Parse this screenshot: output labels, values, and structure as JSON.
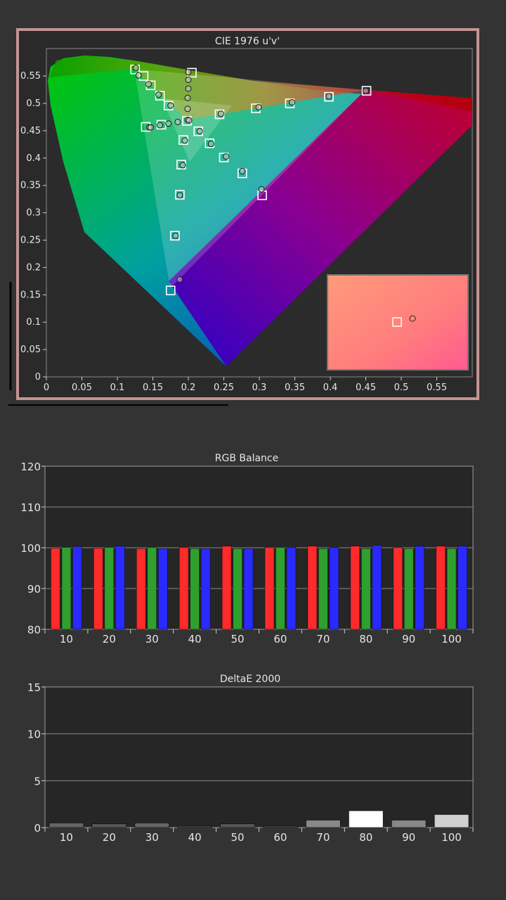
{
  "colors": {
    "background": "#333333",
    "plot_bg": "#2a2a2a",
    "frame_border": "#c39493",
    "grid": "#8a8a8a",
    "red": "#ff2a2a",
    "green": "#2fa02f",
    "blue": "#2a2aff"
  },
  "chart_data": [
    {
      "type": "scatter",
      "title": "CIE 1976 u'v'",
      "xlim": [
        0,
        0.6
      ],
      "ylim": [
        0,
        0.6
      ],
      "x_ticks": [
        "0",
        "0.05",
        "0.1",
        "0.15",
        "0.2",
        "0.25",
        "0.3",
        "0.35",
        "0.4",
        "0.45",
        "0.5",
        "0.55"
      ],
      "y_ticks": [
        "0",
        "0.05",
        "0.1",
        "0.15",
        "0.2",
        "0.25",
        "0.3",
        "0.35",
        "0.4",
        "0.45",
        "0.5",
        "0.55"
      ],
      "gamut": {
        "red": [
          0.451,
          0.523
        ],
        "green": [
          0.125,
          0.562
        ],
        "blue": [
          0.175,
          0.158
        ],
        "white": [
          0.198,
          0.468
        ]
      },
      "targets": [
        [
          0.125,
          0.562
        ],
        [
          0.137,
          0.55
        ],
        [
          0.147,
          0.533
        ],
        [
          0.16,
          0.514
        ],
        [
          0.172,
          0.496
        ],
        [
          0.205,
          0.556
        ],
        [
          0.14,
          0.457
        ],
        [
          0.162,
          0.461
        ],
        [
          0.198,
          0.468
        ],
        [
          0.244,
          0.48
        ],
        [
          0.295,
          0.491
        ],
        [
          0.343,
          0.5
        ],
        [
          0.398,
          0.512
        ],
        [
          0.451,
          0.523
        ],
        [
          0.214,
          0.449
        ],
        [
          0.23,
          0.427
        ],
        [
          0.25,
          0.401
        ],
        [
          0.276,
          0.372
        ],
        [
          0.304,
          0.332
        ],
        [
          0.193,
          0.433
        ],
        [
          0.19,
          0.388
        ],
        [
          0.188,
          0.333
        ],
        [
          0.181,
          0.258
        ],
        [
          0.175,
          0.158
        ]
      ],
      "measured": [
        [
          0.126,
          0.565
        ],
        [
          0.13,
          0.551
        ],
        [
          0.144,
          0.535
        ],
        [
          0.158,
          0.516
        ],
        [
          0.175,
          0.496
        ],
        [
          0.2,
          0.557
        ],
        [
          0.2,
          0.543
        ],
        [
          0.2,
          0.527
        ],
        [
          0.199,
          0.51
        ],
        [
          0.199,
          0.49
        ],
        [
          0.199,
          0.47
        ],
        [
          0.145,
          0.456
        ],
        [
          0.147,
          0.456
        ],
        [
          0.16,
          0.46
        ],
        [
          0.172,
          0.463
        ],
        [
          0.185,
          0.466
        ],
        [
          0.201,
          0.469
        ],
        [
          0.246,
          0.481
        ],
        [
          0.299,
          0.493
        ],
        [
          0.346,
          0.502
        ],
        [
          0.398,
          0.513
        ],
        [
          0.45,
          0.523
        ],
        [
          0.216,
          0.449
        ],
        [
          0.232,
          0.426
        ],
        [
          0.253,
          0.403
        ],
        [
          0.276,
          0.376
        ],
        [
          0.303,
          0.343
        ],
        [
          0.195,
          0.432
        ],
        [
          0.192,
          0.387
        ],
        [
          0.188,
          0.332
        ],
        [
          0.182,
          0.258
        ],
        [
          0.188,
          0.178
        ]
      ]
    },
    {
      "type": "bar",
      "title": "RGB Balance",
      "categories": [
        "10",
        "20",
        "30",
        "40",
        "50",
        "60",
        "70",
        "80",
        "90",
        "100"
      ],
      "ylim": [
        80,
        120
      ],
      "y_ticks": [
        "80",
        "90",
        "100",
        "110",
        "120"
      ],
      "series": [
        {
          "color": "#ff2a2a",
          "values": [
            99.9,
            99.9,
            99.8,
            100.1,
            100.4,
            100.1,
            100.4,
            100.4,
            100.1,
            100.4
          ]
        },
        {
          "color": "#2fa02f",
          "values": [
            100.1,
            100.1,
            100.1,
            99.8,
            99.8,
            100.1,
            99.8,
            99.8,
            99.8,
            99.8
          ]
        },
        {
          "color": "#2a2aff",
          "values": [
            100.3,
            100.4,
            99.8,
            99.8,
            99.8,
            100.1,
            100.1,
            100.6,
            100.4,
            100.4
          ]
        }
      ]
    },
    {
      "type": "bar",
      "title": "DeltaE 2000",
      "categories": [
        "10",
        "20",
        "30",
        "40",
        "50",
        "60",
        "70",
        "80",
        "90",
        "100"
      ],
      "ylim": [
        0,
        15
      ],
      "y_ticks": [
        "0",
        "5",
        "10",
        "15"
      ],
      "values": [
        0.5,
        0.4,
        0.5,
        0.2,
        0.4,
        0.2,
        0.8,
        1.8,
        0.8,
        1.4
      ]
    }
  ]
}
